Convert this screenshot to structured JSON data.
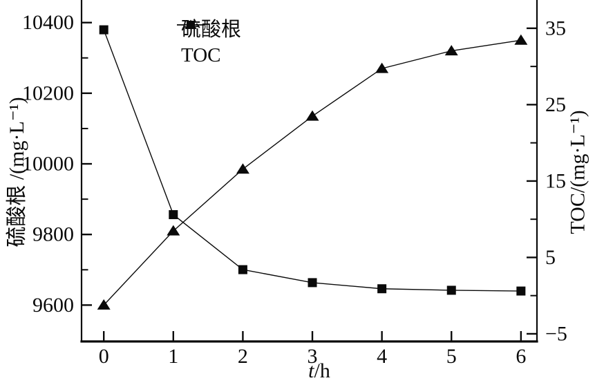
{
  "figure": {
    "background_color": "#ffffff",
    "ink_color": "#0a0a0a"
  },
  "legend": {
    "items": [
      {
        "id": "sulfate",
        "label": "硫酸根",
        "marker": "triangle"
      },
      {
        "id": "toc",
        "label": "TOC",
        "marker": "square"
      }
    ]
  },
  "axes": {
    "x": {
      "label_italic": "t",
      "label_rest": "/h",
      "ticks": [
        0,
        1,
        2,
        3,
        4,
        5,
        6
      ],
      "range": [
        -0.32,
        6.23
      ]
    },
    "left": {
      "label": "硫酸根 /(mg·L⁻¹)",
      "major_ticks": [
        9600,
        9800,
        10000,
        10200,
        10400
      ],
      "minor_ticks": [
        9700,
        9900,
        10100,
        10300
      ],
      "range": [
        9497,
        10464
      ]
    },
    "right": {
      "label": "TOC/(mg·L⁻¹)",
      "major_ticks": [
        -5,
        5,
        15,
        25,
        35
      ],
      "minor_ticks": [
        0,
        10,
        20,
        30
      ],
      "range": [
        -6,
        38.7
      ]
    }
  },
  "chart_data": {
    "type": "line",
    "x": [
      0,
      1,
      2,
      3,
      4,
      5,
      6
    ],
    "xlabel": "t/h",
    "ylabel_left": "硫酸根 /(mg·L⁻¹)",
    "ylabel_right": "TOC/(mg·L⁻¹)",
    "series": [
      {
        "id": "sulfate",
        "name": "硫酸根",
        "axis": "left",
        "marker": "triangle",
        "color": "#0a0a0a",
        "values": [
          9600,
          9810,
          9985,
          10135,
          10270,
          10320,
          10350
        ]
      },
      {
        "id": "toc",
        "name": "TOC",
        "axis": "right",
        "marker": "square",
        "color": "#0a0a0a",
        "values": [
          34.8,
          10.6,
          3.4,
          1.7,
          0.9,
          0.7,
          0.6
        ]
      }
    ],
    "xlim": [
      -0.32,
      6.23
    ],
    "ylim_left": [
      9497,
      10464
    ],
    "ylim_right": [
      -6,
      38.7
    ],
    "grid": false,
    "legend_position": "top-inside",
    "title": ""
  }
}
